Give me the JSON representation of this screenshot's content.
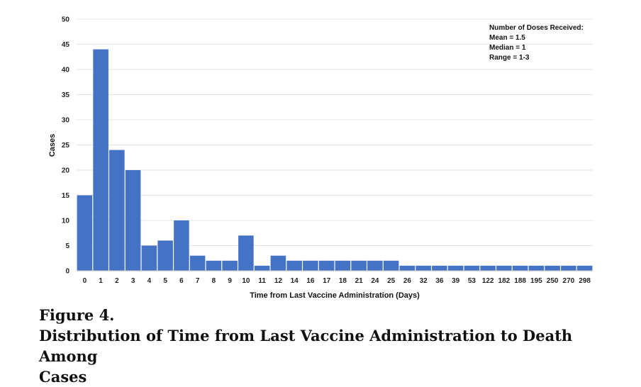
{
  "chart_data": {
    "type": "bar",
    "categories": [
      "0",
      "1",
      "2",
      "3",
      "4",
      "5",
      "6",
      "7",
      "8",
      "9",
      "10",
      "11",
      "12",
      "14",
      "16",
      "17",
      "18",
      "21",
      "24",
      "25",
      "26",
      "32",
      "36",
      "39",
      "53",
      "122",
      "182",
      "188",
      "195",
      "250",
      "270",
      "298"
    ],
    "values": [
      15,
      44,
      24,
      20,
      5,
      6,
      10,
      3,
      2,
      2,
      7,
      1,
      3,
      2,
      2,
      2,
      2,
      2,
      2,
      2,
      1,
      1,
      1,
      1,
      1,
      1,
      1,
      1,
      1,
      1,
      1,
      1
    ],
    "xlabel": "Time from Last Vaccine Administration (Days)",
    "ylabel": "Cases",
    "ylim": [
      0,
      50
    ],
    "yticks": [
      0,
      5,
      10,
      15,
      20,
      25,
      30,
      35,
      40,
      45,
      50
    ],
    "grid": true,
    "bar_color": "#4472c4",
    "annotation": {
      "title": "Number of Doses Received:",
      "lines": [
        "Mean = 1.5",
        "Median = 1",
        "Range = 1-3"
      ]
    }
  },
  "caption": {
    "label": "Figure 4.",
    "text_line1": "Distribution of Time from Last Vaccine Administration to Death Among",
    "text_line2": "Cases"
  }
}
